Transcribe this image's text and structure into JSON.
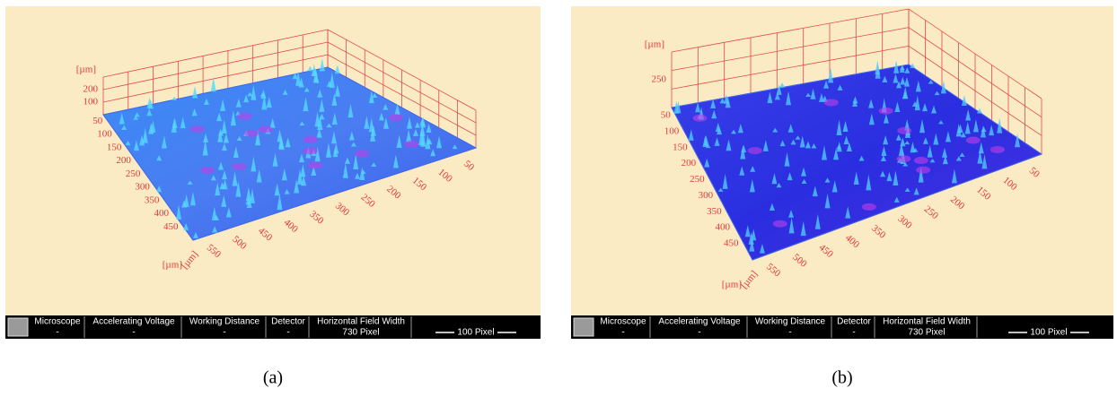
{
  "panels": [
    {
      "caption": "(a)",
      "z_axis": {
        "unit": "[µm]",
        "ticks": [
          "100",
          "200"
        ]
      },
      "y_axis": {
        "unit": "[µm]",
        "ticks": [
          "50",
          "100",
          "150",
          "200",
          "250",
          "300",
          "350",
          "400",
          "450"
        ]
      },
      "x_axis": {
        "unit": "[µm]",
        "ticks": [
          "550",
          "500",
          "450",
          "400",
          "350",
          "300",
          "250",
          "200",
          "150",
          "100",
          "50"
        ]
      }
    },
    {
      "caption": "(b)",
      "z_axis": {
        "unit": "[µm]",
        "ticks": [
          "250"
        ]
      },
      "y_axis": {
        "unit": "[µm]",
        "ticks": [
          "50",
          "100",
          "150",
          "200",
          "250",
          "300",
          "350",
          "400",
          "450"
        ]
      },
      "x_axis": {
        "unit": "[µm]",
        "ticks": [
          "550",
          "500",
          "450",
          "400",
          "350",
          "300",
          "250",
          "200",
          "150",
          "100",
          "50"
        ]
      }
    }
  ],
  "info_bar": {
    "fields": [
      {
        "label": "Microscope",
        "value": "-"
      },
      {
        "label": "Accelerating Voltage",
        "value": "-"
      },
      {
        "label": "Working Distance",
        "value": "-"
      },
      {
        "label": "Detector",
        "value": "-"
      },
      {
        "label": "Horizontal Field Width",
        "value": "730 Pixel"
      }
    ],
    "scale": "100 Pixel"
  }
}
